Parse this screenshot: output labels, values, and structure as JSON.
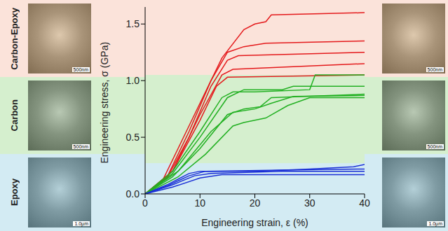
{
  "chart_data": {
    "type": "line",
    "x_label": "Engineering strain, ε (%)",
    "y_label": "Engineering stress, σ (GPa)",
    "xlim": [
      0,
      40
    ],
    "xticks": [
      0,
      10,
      20,
      30,
      40
    ],
    "ylim": [
      0,
      1.65
    ],
    "yticks": [
      {
        "value": 0,
        "label": "0.0"
      },
      {
        "value": 0.5,
        "label": "0.5"
      },
      {
        "value": 1,
        "label": "1.0"
      },
      {
        "value": 1.5,
        "label": "1.5"
      }
    ],
    "grid": false,
    "marker": "none",
    "line_style": "solid",
    "bands": [
      {
        "y": [
          1.05,
          1.65
        ],
        "color": "#fbe3da"
      },
      {
        "y": [
          0.27,
          1.05
        ],
        "color": "#d5efce"
      },
      {
        "y": [
          0,
          0.27
        ],
        "color": "#d3ebf3"
      }
    ],
    "row_labels": [
      "Carbon-Epoxy",
      "Carbon",
      "Epoxy"
    ],
    "row_colors": [
      "#fbe3da",
      "#d5efce",
      "#d3ebf3"
    ],
    "scale_bars_left": [
      "500nm",
      "500nm",
      "1.0µm"
    ],
    "scale_bars_right": [
      "500nm",
      "500nm",
      "1.0µm"
    ],
    "series": [
      {
        "color": "#e41a1c",
        "x": [
          0,
          3,
          6,
          10,
          14,
          18,
          20,
          22,
          23,
          40
        ],
        "values": [
          0,
          0.1,
          0.4,
          0.8,
          1.2,
          1.45,
          1.5,
          1.52,
          1.58,
          1.6
        ]
      },
      {
        "color": "#e41a1c",
        "x": [
          0,
          4,
          8,
          12,
          15,
          18,
          22,
          40
        ],
        "values": [
          0,
          0.15,
          0.55,
          1.0,
          1.25,
          1.3,
          1.33,
          1.35
        ]
      },
      {
        "color": "#e41a1c",
        "x": [
          0,
          4,
          8,
          12,
          15,
          17,
          40
        ],
        "values": [
          0,
          0.14,
          0.5,
          0.95,
          1.18,
          1.22,
          1.25
        ]
      },
      {
        "color": "#e41a1c",
        "x": [
          0,
          5,
          10,
          14,
          16,
          40
        ],
        "values": [
          0,
          0.2,
          0.7,
          1.05,
          1.1,
          1.15
        ]
      },
      {
        "color": "#e41a1c",
        "x": [
          0,
          5,
          10,
          13,
          15,
          40
        ],
        "values": [
          0,
          0.2,
          0.65,
          0.95,
          1.03,
          1.05
        ]
      },
      {
        "color": "#22b022",
        "x": [
          0,
          5,
          10,
          14,
          16,
          20,
          30,
          31,
          40
        ],
        "values": [
          0,
          0.2,
          0.55,
          0.85,
          0.9,
          0.9,
          0.92,
          1.05,
          1.05
        ]
      },
      {
        "color": "#22b022",
        "x": [
          0,
          5,
          10,
          15,
          18,
          25,
          27,
          40
        ],
        "values": [
          0,
          0.18,
          0.5,
          0.85,
          0.92,
          0.92,
          0.95,
          0.95
        ]
      },
      {
        "color": "#22b022",
        "x": [
          0,
          5,
          10,
          15,
          18,
          21,
          23,
          40
        ],
        "values": [
          0,
          0.15,
          0.4,
          0.7,
          0.75,
          0.77,
          0.85,
          0.88
        ]
      },
      {
        "color": "#22b022",
        "x": [
          0,
          6,
          11,
          16,
          18,
          22,
          26,
          30,
          40
        ],
        "values": [
          0,
          0.15,
          0.35,
          0.6,
          0.63,
          0.67,
          0.78,
          0.85,
          0.85
        ]
      },
      {
        "color": "#22b022",
        "x": [
          0,
          6,
          12,
          16,
          20,
          23,
          27,
          40
        ],
        "values": [
          0,
          0.2,
          0.55,
          0.72,
          0.75,
          0.8,
          0.86,
          0.87
        ]
      },
      {
        "color": "#1a2fd6",
        "x": [
          0,
          4,
          8,
          10,
          20,
          30,
          38,
          40
        ],
        "values": [
          0,
          0.08,
          0.18,
          0.2,
          0.2,
          0.22,
          0.24,
          0.26
        ]
      },
      {
        "color": "#1a2fd6",
        "x": [
          0,
          4,
          8,
          11,
          25,
          40
        ],
        "values": [
          0,
          0.07,
          0.16,
          0.2,
          0.21,
          0.22
        ]
      },
      {
        "color": "#1a2fd6",
        "x": [
          0,
          5,
          9,
          12,
          25,
          40
        ],
        "values": [
          0,
          0.08,
          0.16,
          0.18,
          0.2,
          0.2
        ]
      },
      {
        "color": "#1a2fd6",
        "x": [
          0,
          5,
          10,
          14,
          40
        ],
        "values": [
          0,
          0.06,
          0.14,
          0.17,
          0.17
        ]
      }
    ]
  }
}
